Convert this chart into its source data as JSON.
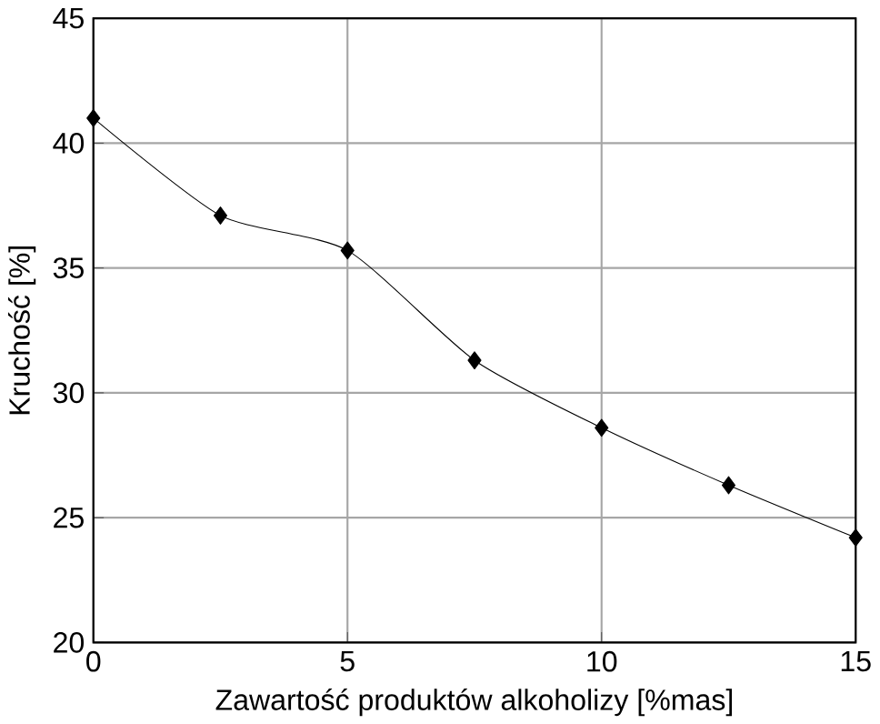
{
  "chart_data": {
    "type": "line",
    "xlabel": "Zawartość produktów alkoholizy [%mas]",
    "ylabel": "Kruchość [%]",
    "x": [
      0,
      2.5,
      5,
      7.5,
      10,
      12.5,
      15
    ],
    "values": [
      41.0,
      37.1,
      35.7,
      31.3,
      28.6,
      26.3,
      24.2
    ],
    "color": "#000000",
    "marker": "diamond",
    "line_style": "solid",
    "grid": true,
    "xlim": [
      0,
      15
    ],
    "xticks": [
      0,
      5,
      10,
      15
    ],
    "ylim": [
      20,
      45
    ],
    "yticks": [
      20,
      25,
      30,
      35,
      40,
      45
    ]
  }
}
